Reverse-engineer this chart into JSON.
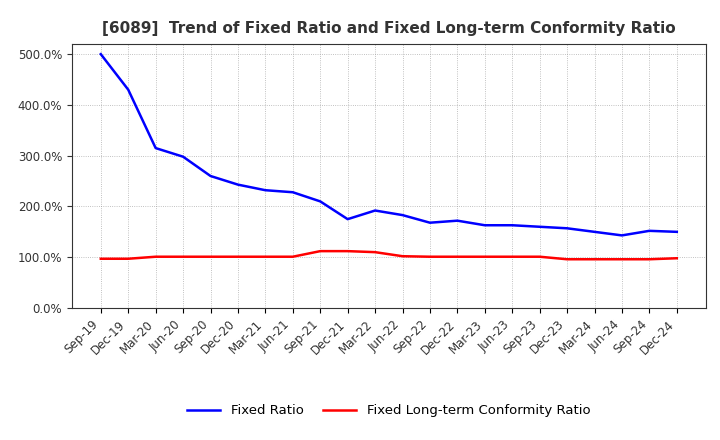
{
  "title": "[6089]  Trend of Fixed Ratio and Fixed Long-term Conformity Ratio",
  "x_labels": [
    "Sep-19",
    "Dec-19",
    "Mar-20",
    "Jun-20",
    "Sep-20",
    "Dec-20",
    "Mar-21",
    "Jun-21",
    "Sep-21",
    "Dec-21",
    "Mar-22",
    "Jun-22",
    "Sep-22",
    "Dec-22",
    "Mar-23",
    "Jun-23",
    "Sep-23",
    "Dec-23",
    "Mar-24",
    "Jun-24",
    "Sep-24",
    "Dec-24"
  ],
  "fixed_ratio": [
    500,
    430,
    315,
    298,
    260,
    243,
    232,
    228,
    210,
    175,
    192,
    183,
    168,
    172,
    163,
    163,
    160,
    157,
    150,
    143,
    152,
    150
  ],
  "fixed_lt_ratio": [
    97,
    97,
    101,
    101,
    101,
    101,
    101,
    101,
    112,
    112,
    110,
    102,
    101,
    101,
    101,
    101,
    101,
    96,
    96,
    96,
    96,
    98
  ],
  "fixed_ratio_color": "#0000ff",
  "fixed_lt_ratio_color": "#ff0000",
  "background_color": "#ffffff",
  "plot_bg_color": "#ffffff",
  "grid_color": "#999999",
  "ylim": [
    0,
    520
  ],
  "yticks": [
    0,
    100,
    200,
    300,
    400,
    500
  ],
  "legend_fixed_ratio": "Fixed Ratio",
  "legend_fixed_lt_ratio": "Fixed Long-term Conformity Ratio",
  "title_fontsize": 11,
  "axis_fontsize": 8.5,
  "legend_fontsize": 9.5,
  "line_width": 1.8
}
